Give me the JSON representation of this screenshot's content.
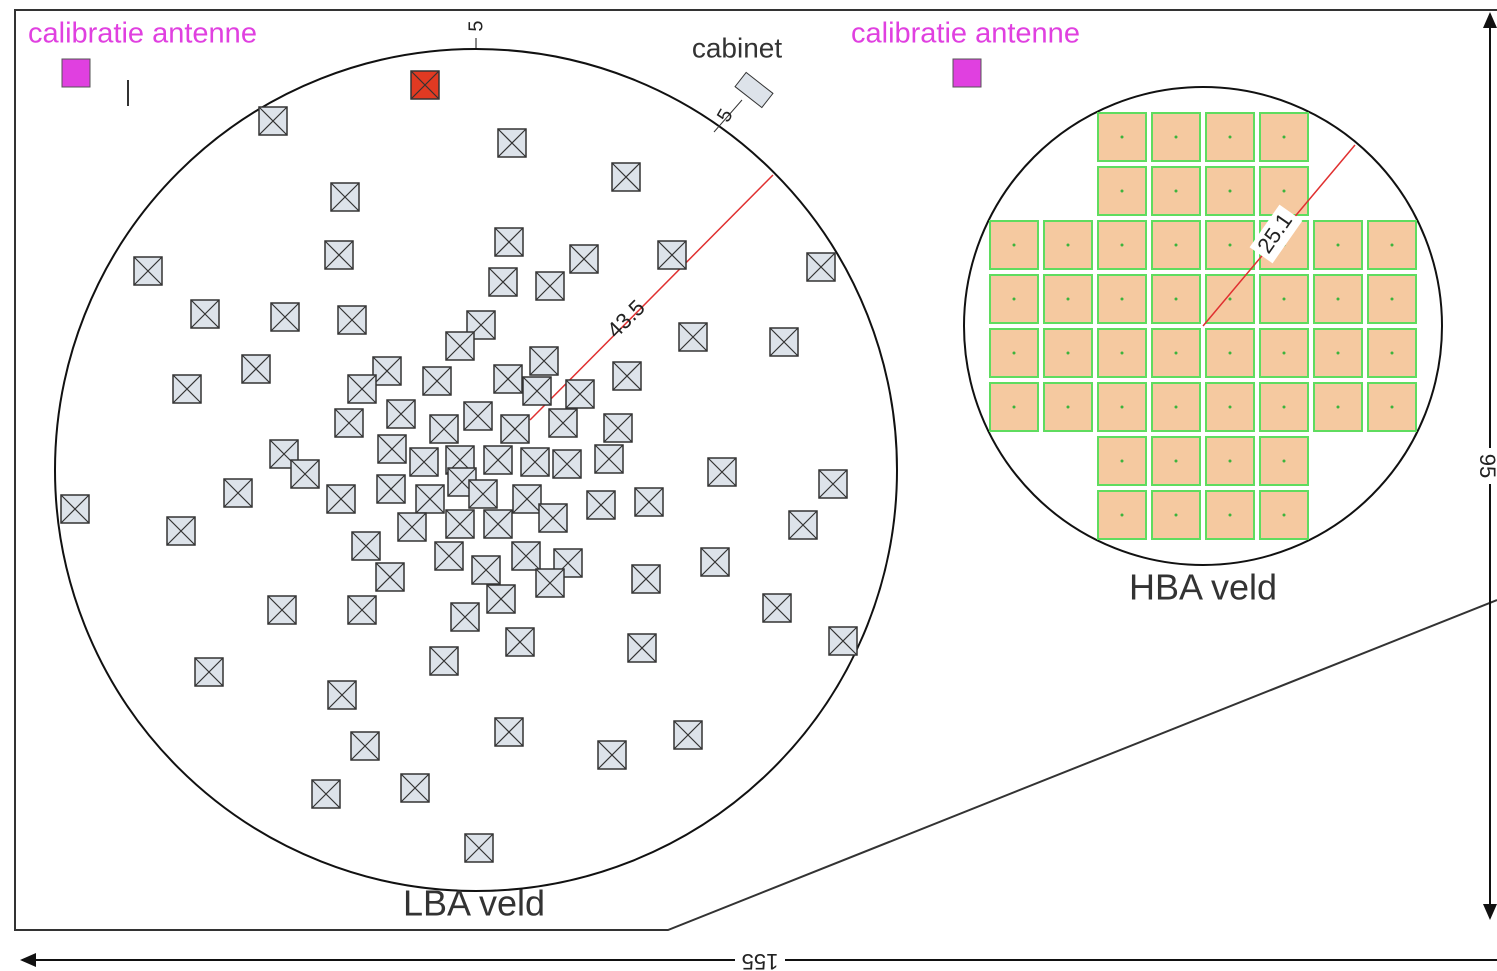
{
  "labels": {
    "calibration_left": "calibratie antenne",
    "calibration_right": "calibratie antenne",
    "cabinet": "cabinet",
    "lba_field": "LBA veld",
    "hba_field": "HBA veld",
    "lba_radius": "43.5",
    "hba_radius": "25.1",
    "top_offset": "5",
    "cabinet_offset": "5",
    "width": "155",
    "height": "95"
  }
}
